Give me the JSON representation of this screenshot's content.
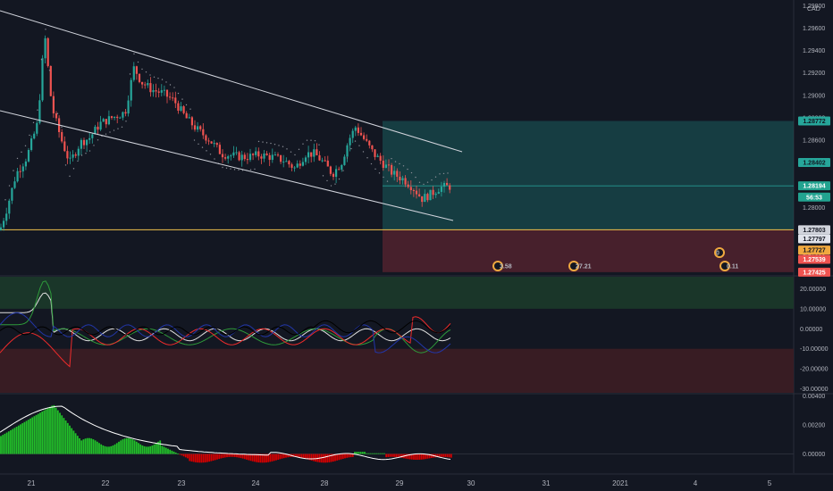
{
  "chart_data": {
    "type": "candlestick",
    "symbol_currency": "CAD",
    "price_panel": {
      "y_ticks": [
        "1.29800",
        "1.29600",
        "1.29400",
        "1.29200",
        "1.29000",
        "1.28800",
        "1.28600",
        "1.28400",
        "1.28200",
        "1.28000",
        "1.27800",
        "1.27600"
      ],
      "ylim": [
        1.274,
        1.2985
      ],
      "price_tags": [
        {
          "label": "1.28772",
          "value": 1.28772,
          "color": "#26a69a",
          "text_color": "#131722"
        },
        {
          "label": "1.28402",
          "value": 1.28402,
          "color": "#26a69a",
          "text_color": "#131722"
        },
        {
          "label": "1.28194",
          "value": 1.28194,
          "color": "#22a390",
          "text_color": "#ffffff"
        },
        {
          "label": "56:53",
          "value": 1.28094,
          "color": "#22a390",
          "text_color": "#ffffff"
        },
        {
          "label": "1.27803",
          "value": 1.27803,
          "color": "#d1d4dc",
          "text_color": "#131722"
        },
        {
          "label": "1.27797",
          "value": 1.27722,
          "color": "#e0e3eb",
          "text_color": "#131722"
        },
        {
          "label": "1.27727",
          "value": 1.27622,
          "color": "#f0a940",
          "text_color": "#131722"
        },
        {
          "label": "1.27539",
          "value": 1.27539,
          "color": "#ef5350",
          "text_color": "#ffffff"
        },
        {
          "label": "1.27425",
          "value": 1.27425,
          "color": "#ef5350",
          "text_color": "#ffffff"
        }
      ],
      "horizontal_line": 1.27803,
      "position_tool": {
        "entry": 1.27803,
        "target": 1.28772,
        "stop": 1.27425
      },
      "event_markers": [
        {
          "label": "3.58",
          "value": 1.27425
        },
        {
          "label": "27.21",
          "value": 1.27425
        },
        {
          "label": "0.11",
          "value": 1.27425
        },
        {
          "label": "0",
          "value": 1.27607
        }
      ]
    },
    "adx_panel": {
      "y_ticks": [
        "20.00000",
        "10.00000",
        "0.00000",
        "-10.00000",
        "-20.00000",
        "-30.00000"
      ],
      "ylim": [
        -32,
        26
      ],
      "upper_band": [
        10,
        26
      ],
      "lower_band": [
        -32,
        -10
      ]
    },
    "osc_panel": {
      "y_ticks": [
        "0.00400",
        "0.00200",
        "0.00000"
      ],
      "ylim": [
        -0.0012,
        0.0041
      ]
    },
    "x_ticks": [
      "21",
      "22",
      "23",
      "24",
      "28",
      "29",
      "30",
      "31",
      "2021",
      "4",
      "5"
    ]
  }
}
